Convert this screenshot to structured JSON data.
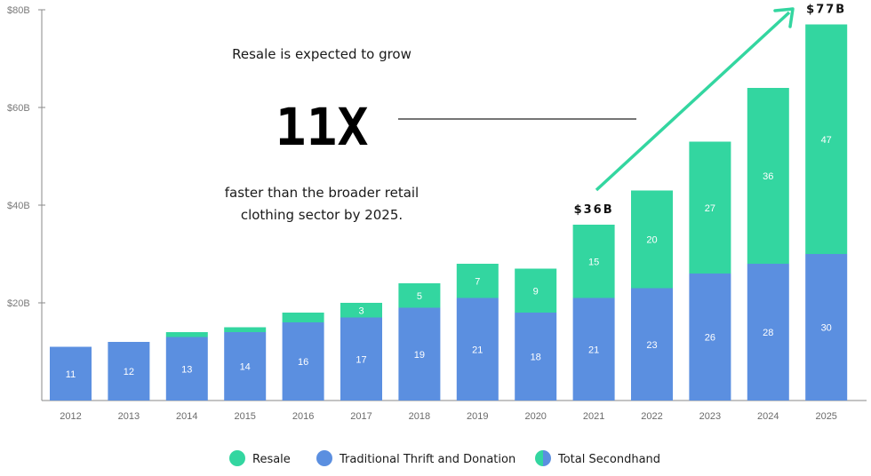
{
  "chart_data": {
    "type": "bar",
    "stacked": true,
    "categories": [
      "2012",
      "2013",
      "2014",
      "2015",
      "2016",
      "2017",
      "2018",
      "2019",
      "2020",
      "2021",
      "2022",
      "2023",
      "2024",
      "2025"
    ],
    "series": [
      {
        "name": "Traditional Thrift and Donation",
        "color": "#5b8fe0",
        "values": [
          11,
          12,
          13,
          14,
          16,
          17,
          19,
          21,
          18,
          21,
          23,
          26,
          28,
          30
        ],
        "labels": [
          "11",
          "12",
          "13",
          "14",
          "16",
          "17",
          "19",
          "21",
          "18",
          "21",
          "23",
          "26",
          "28",
          "30"
        ]
      },
      {
        "name": "Resale",
        "color": "#33d6a0",
        "values": [
          0,
          0,
          1,
          1,
          2,
          3,
          5,
          7,
          9,
          15,
          20,
          27,
          36,
          47
        ],
        "labels": [
          "",
          "",
          "",
          "",
          "",
          "3",
          "5",
          "7",
          "9",
          "15",
          "20",
          "27",
          "36",
          "47"
        ]
      }
    ],
    "ylim": [
      0,
      80
    ],
    "yticks": [
      {
        "value": 20,
        "label": "$20B"
      },
      {
        "value": 40,
        "label": "$40B"
      },
      {
        "value": 60,
        "label": "$60B"
      },
      {
        "value": 80,
        "label": "$80B"
      }
    ],
    "callouts": [
      {
        "category": "2021",
        "text": "$36B"
      },
      {
        "category": "2025",
        "text": "$77B"
      }
    ],
    "annotation": {
      "line1": "Resale is expected to grow",
      "big": "11X",
      "line2": "faster than the broader retail",
      "line3": "clothing sector by 2025."
    },
    "legend": [
      {
        "name": "Resale",
        "color": "#33d6a0"
      },
      {
        "name": "Traditional Thrift and Donation",
        "color": "#5b8fe0"
      },
      {
        "name": "Total Secondhand",
        "color": "split"
      }
    ],
    "arrow_color": "#33d6a0"
  }
}
